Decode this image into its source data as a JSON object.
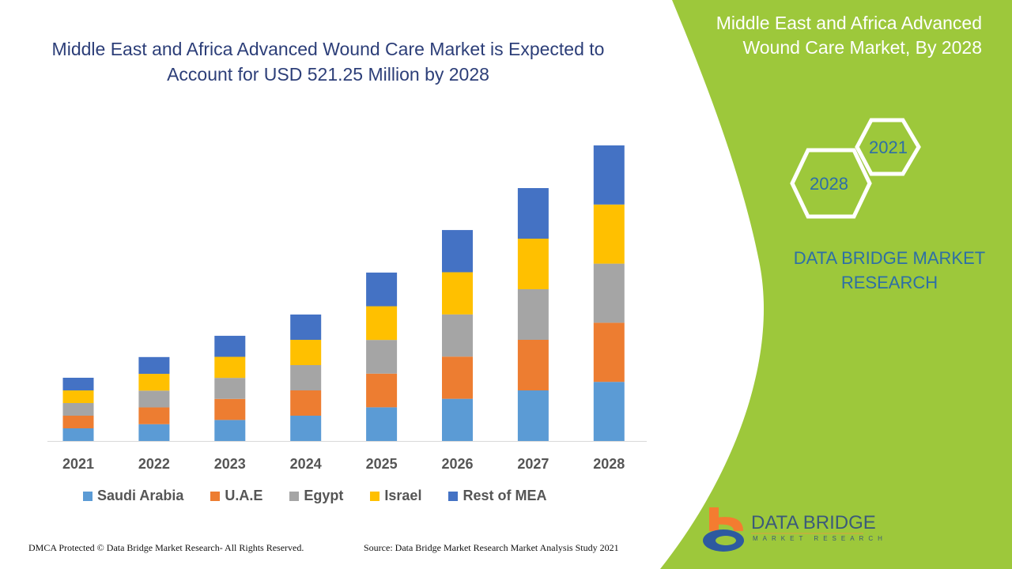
{
  "header": {
    "title": "Middle East and Africa Advanced Wound Care Market is Expected to Account for USD 521.25 Million by 2028",
    "side_title": "Middle East and Africa Advanced Wound Care Market, By 2028",
    "hex_labels": [
      "2021",
      "2028"
    ],
    "brand": "DATA BRIDGE MARKET RESEARCH"
  },
  "logo": {
    "name": "DATA BRIDGE",
    "sub": "MARKET RESEARCH"
  },
  "footer": {
    "left": "DMCA Protected © Data Bridge Market Research- All Rights Reserved.",
    "right": "Source: Data Bridge Market Research Market Analysis Study 2021"
  },
  "colors": {
    "panel": "#9dc83b",
    "title": "#2c3e78"
  },
  "chart_data": {
    "type": "bar",
    "stacked": true,
    "categories": [
      "2021",
      "2022",
      "2023",
      "2024",
      "2025",
      "2026",
      "2027",
      "2028"
    ],
    "legend_position": "bottom",
    "grid": false,
    "series": [
      {
        "name": "Saudi Arabia",
        "color": "#5b9bd5",
        "values": [
          22.3,
          29.6,
          37.1,
          44.6,
          59.4,
          74.4,
          89.2,
          104.25
        ]
      },
      {
        "name": "U.A.E",
        "color": "#ed7d31",
        "values": [
          22.3,
          29.6,
          37.1,
          44.6,
          59.4,
          74.4,
          89.2,
          104.25
        ]
      },
      {
        "name": "Egypt",
        "color": "#a5a5a5",
        "values": [
          22.3,
          29.6,
          37.1,
          44.6,
          59.4,
          74.4,
          89.2,
          104.25
        ]
      },
      {
        "name": "Israel",
        "color": "#ffc000",
        "values": [
          22.3,
          29.6,
          37.1,
          44.6,
          59.4,
          74.4,
          89.2,
          104.25
        ]
      },
      {
        "name": "Rest of MEA",
        "color": "#4472c4",
        "values": [
          22.3,
          29.6,
          37.1,
          44.6,
          59.4,
          74.4,
          89.2,
          104.25
        ]
      }
    ]
  }
}
